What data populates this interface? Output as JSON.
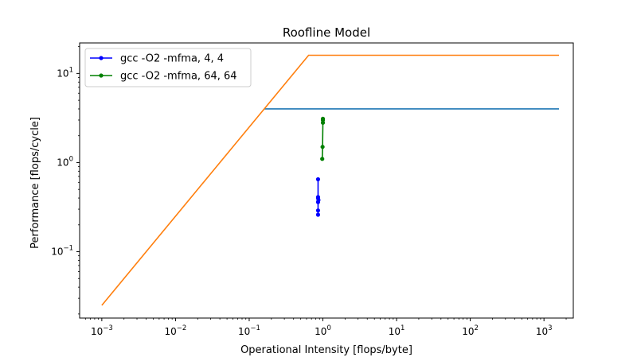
{
  "chart_data": {
    "type": "line",
    "title": "Roofline Model",
    "xlabel": "Operational Intensity [flops/byte]",
    "ylabel": "Performance [flops/cycle]",
    "xscale": "log",
    "yscale": "log",
    "xlim": [
      0.0005,
      2500
    ],
    "ylim": [
      0.018,
      22
    ],
    "xticks": [
      {
        "value": 0.001,
        "base": "10",
        "exp": "−3"
      },
      {
        "value": 0.01,
        "base": "10",
        "exp": "−2"
      },
      {
        "value": 0.1,
        "base": "10",
        "exp": "−1"
      },
      {
        "value": 1,
        "base": "10",
        "exp": "0"
      },
      {
        "value": 10,
        "base": "10",
        "exp": "1"
      },
      {
        "value": 100,
        "base": "10",
        "exp": "2"
      },
      {
        "value": 1000,
        "base": "10",
        "exp": "3"
      }
    ],
    "yticks": [
      {
        "value": 0.1,
        "base": "10",
        "exp": "−1"
      },
      {
        "value": 1,
        "base": "10",
        "exp": "0"
      },
      {
        "value": 10,
        "base": "10",
        "exp": "1"
      }
    ],
    "grid": false,
    "legend_position": "top-left",
    "series": [
      {
        "color": "#1f77b4",
        "marker": false,
        "x": [
          0.16,
          1600
        ],
        "y": [
          4,
          4
        ]
      },
      {
        "color": "#ff7f0e",
        "marker": false,
        "x": [
          0.001,
          0.64,
          1600
        ],
        "y": [
          0.025,
          16,
          16
        ]
      },
      {
        "name": "gcc -O2 -mfma, 4, 4",
        "color": "#0000ff",
        "marker": true,
        "x": [
          0.86,
          0.86,
          0.86,
          0.87,
          0.86,
          0.86,
          0.86
        ],
        "y": [
          0.26,
          0.29,
          0.36,
          0.38,
          0.4,
          0.41,
          0.65
        ]
      },
      {
        "name": "gcc -O2 -mfma, 64, 64",
        "color": "#008000",
        "marker": true,
        "x": [
          0.98,
          0.99,
          1.0,
          1.0,
          1.0
        ],
        "y": [
          1.1,
          1.5,
          2.8,
          3.0,
          3.1
        ]
      }
    ]
  }
}
